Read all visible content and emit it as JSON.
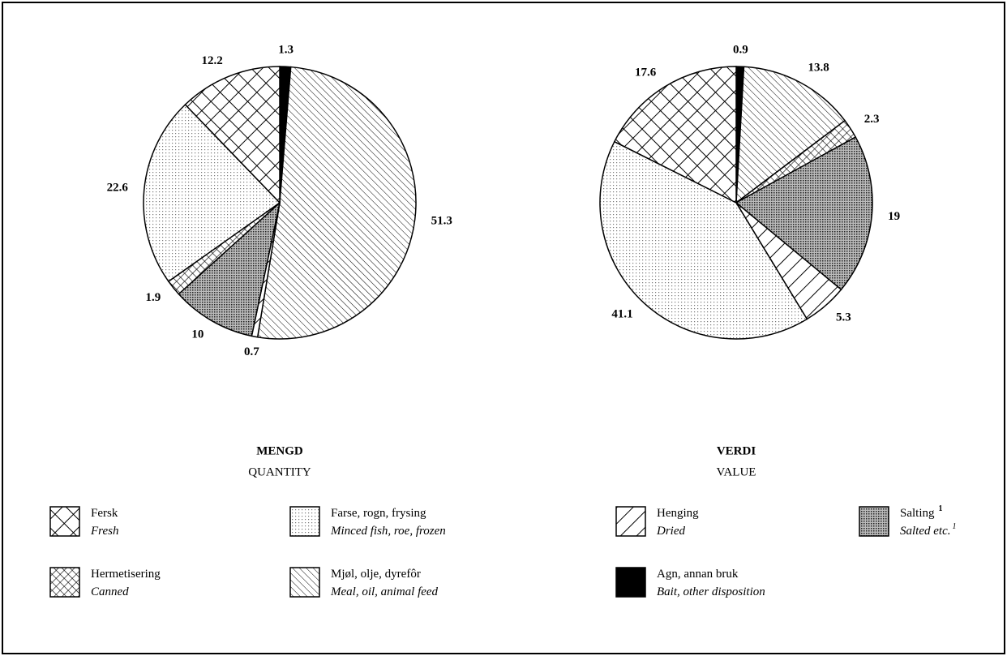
{
  "chart_data": [
    {
      "type": "pie",
      "title": "MENGD",
      "subtitle": "QUANTITY",
      "categories": [
        "Agn, annan bruk",
        "Mjøl, olje, dyrefôr",
        "Henging",
        "Salting",
        "Hermetisering",
        "Farse, rogn, frysing",
        "Fersk"
      ],
      "values": [
        1.3,
        51.3,
        0.7,
        10,
        1.9,
        22.6,
        12.2
      ]
    },
    {
      "type": "pie",
      "title": "VERDI",
      "subtitle": "VALUE",
      "categories": [
        "Agn, annan bruk",
        "Mjøl, olje, dyrefôr",
        "Hermetisering",
        "Salting",
        "Henging",
        "Farse, rogn, frysing",
        "Fersk"
      ],
      "values": [
        0.9,
        13.8,
        2.3,
        19,
        5.3,
        41.1,
        17.6
      ]
    }
  ],
  "legend": {
    "items": [
      {
        "name": "Fersk",
        "translation": "Fresh",
        "pattern": "crosshatch"
      },
      {
        "name": "Farse, rogn, frysing",
        "translation": "Minced fish, roe, frozen",
        "pattern": "light-dots"
      },
      {
        "name": "Henging",
        "translation": "Dried",
        "pattern": "wide-diagonal"
      },
      {
        "name": "Salting",
        "translation": "Salted etc.",
        "footnote": "1",
        "pattern": "dark-dots"
      },
      {
        "name": "Hermetisering",
        "translation": "Canned",
        "pattern": "fine-crosshatch"
      },
      {
        "name": "Mjøl, olje, dyrefôr",
        "translation": "Meal, oil, animal feed",
        "pattern": "fine-diagonal"
      },
      {
        "name": "Agn, annan bruk",
        "translation": "Bait, other disposition",
        "pattern": "solid"
      }
    ]
  }
}
